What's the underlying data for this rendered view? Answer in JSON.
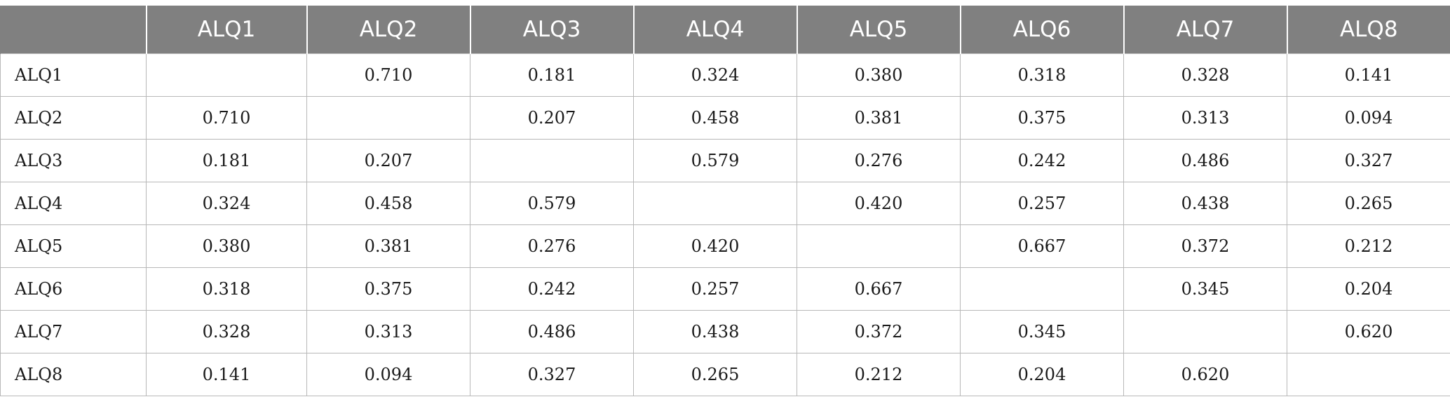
{
  "table": {
    "corner": "",
    "columns": [
      "ALQ1",
      "ALQ2",
      "ALQ3",
      "ALQ4",
      "ALQ5",
      "ALQ6",
      "ALQ7",
      "ALQ8"
    ],
    "rows": [
      {
        "label": "ALQ1",
        "cells": [
          "",
          "0.710",
          "0.181",
          "0.324",
          "0.380",
          "0.318",
          "0.328",
          "0.141"
        ]
      },
      {
        "label": "ALQ2",
        "cells": [
          "0.710",
          "",
          "0.207",
          "0.458",
          "0.381",
          "0.375",
          "0.313",
          "0.094"
        ]
      },
      {
        "label": "ALQ3",
        "cells": [
          "0.181",
          "0.207",
          "",
          "0.579",
          "0.276",
          "0.242",
          "0.486",
          "0.327"
        ]
      },
      {
        "label": "ALQ4",
        "cells": [
          "0.324",
          "0.458",
          "0.579",
          "",
          "0.420",
          "0.257",
          "0.438",
          "0.265"
        ]
      },
      {
        "label": "ALQ5",
        "cells": [
          "0.380",
          "0.381",
          "0.276",
          "0.420",
          "",
          "0.667",
          "0.372",
          "0.212"
        ]
      },
      {
        "label": "ALQ6",
        "cells": [
          "0.318",
          "0.375",
          "0.242",
          "0.257",
          "0.667",
          "",
          "0.345",
          "0.204"
        ]
      },
      {
        "label": "ALQ7",
        "cells": [
          "0.328",
          "0.313",
          "0.486",
          "0.438",
          "0.372",
          "0.345",
          "",
          "0.620"
        ]
      },
      {
        "label": "ALQ8",
        "cells": [
          "0.141",
          "0.094",
          "0.327",
          "0.265",
          "0.212",
          "0.204",
          "0.620",
          ""
        ]
      }
    ]
  },
  "colors": {
    "header_bg": "#808080",
    "header_text": "#ffffff",
    "grid": "#b8b8b8"
  }
}
